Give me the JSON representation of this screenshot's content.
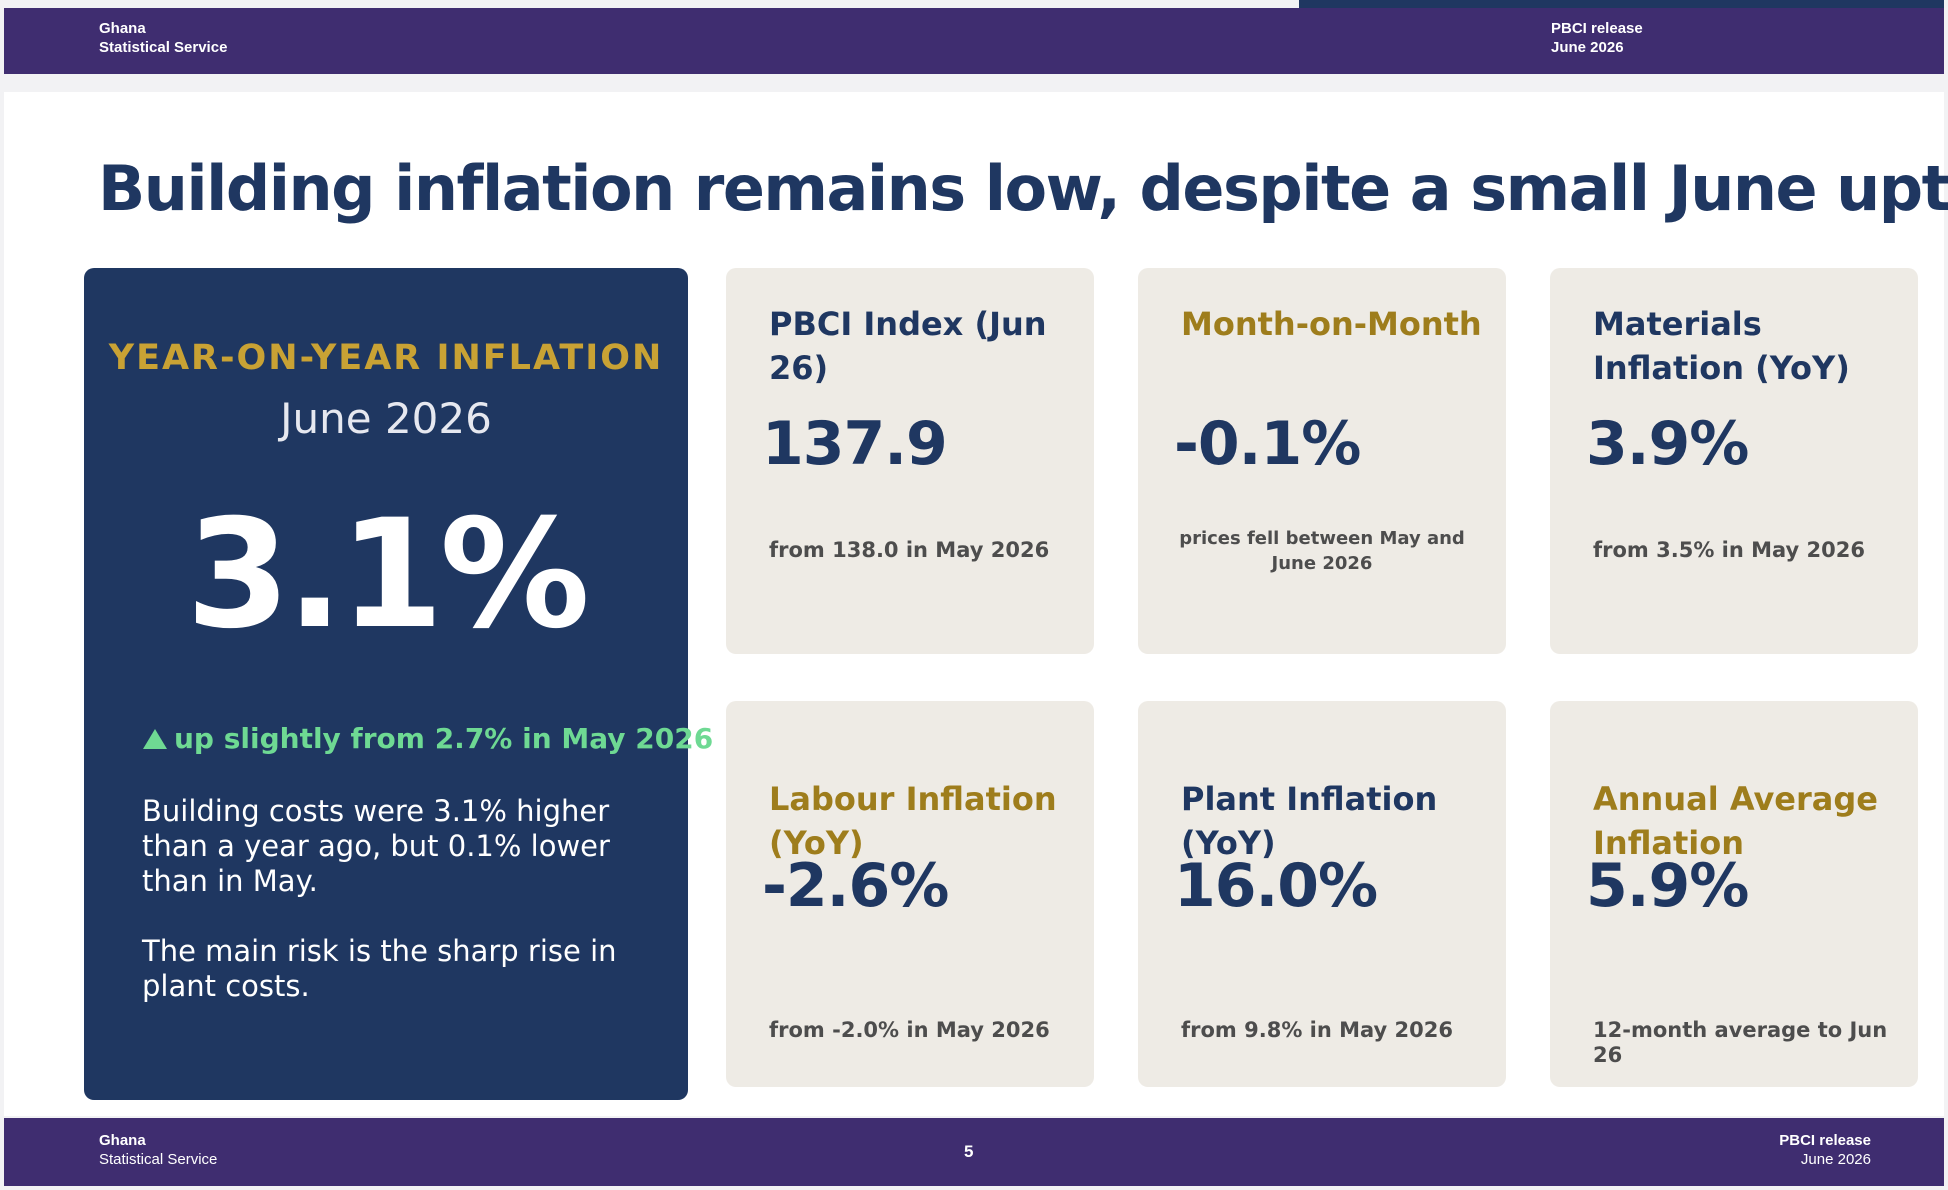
{
  "header": {
    "brand_line1": "Ghana",
    "brand_line2": "Statistical Service",
    "release_line1": "PBCI release",
    "release_line2": "June 2026"
  },
  "title": "Building inflation remains low, despite a small June uptick",
  "hero": {
    "label": "YEAR-ON-YEAR INFLATION",
    "period": "June 2026",
    "value": "3.1%",
    "trend": "up slightly from 2.7% in May 2026",
    "body1": "Building costs were 3.1% higher than a year ago, but 0.1% lower than in May.",
    "body2": "The main risk is the sharp rise in plant costs."
  },
  "cards": {
    "pbci": {
      "label": "PBCI Index (Jun 26)",
      "value": "137.9",
      "note": "from 138.0 in May 2026"
    },
    "mom": {
      "label": "Month-on-Month",
      "value": "-0.1%",
      "note": "prices fell between May and June 2026"
    },
    "materials": {
      "label": "Materials Inflation (YoY)",
      "value": "3.9%",
      "note": "from 3.5% in May 2026"
    },
    "labour": {
      "label": "Labour Inflation (YoY)",
      "value": "-2.6%",
      "note": "from -2.0% in May 2026"
    },
    "plant": {
      "label": "Plant Inflation (YoY)",
      "value": "16.0%",
      "note": "from 9.8% in May 2026"
    },
    "annual": {
      "label": "Annual Average Inflation",
      "value": "5.9%",
      "note": "12-month average to Jun 26"
    }
  },
  "footer": {
    "brand_line1": "Ghana",
    "brand_line2": "Statistical Service",
    "page": "5",
    "release_line1": "PBCI release",
    "release_line2": "June 2026"
  },
  "colors": {
    "header_bg": "#3f2d70",
    "navy": "#1f3761",
    "gold": "#c9a234",
    "card_bg": "#eeebe5",
    "trend_green": "#6ed993"
  },
  "icons": {
    "trend": "triangle-up-icon"
  }
}
